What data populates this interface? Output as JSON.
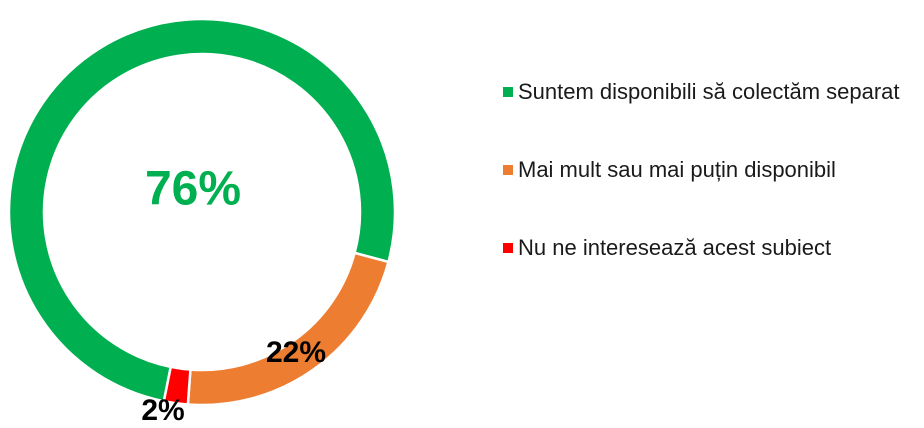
{
  "chart_data": {
    "type": "donut",
    "categories": [
      "Suntem disponibili să colectăm separat",
      "Mai mult sau mai puțin disponibil",
      "Nu ne interesează acest subiect"
    ],
    "values": [
      76,
      22,
      2
    ],
    "value_labels": [
      "76%",
      "22%",
      "2%"
    ],
    "colors": [
      "#00b050",
      "#ed7d31",
      "#ff0000"
    ],
    "legend": "right"
  }
}
